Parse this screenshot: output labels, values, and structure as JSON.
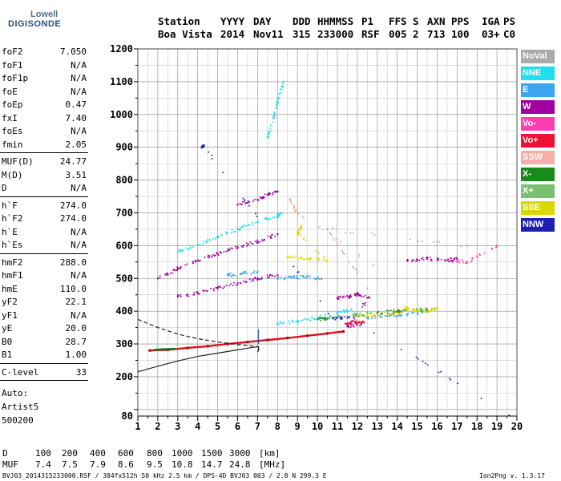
{
  "logo": {
    "line1": "Lowell",
    "line2": "DIGISONDE"
  },
  "header": {
    "labels": [
      "Station",
      "YYYY",
      "DAY",
      "DDD",
      "HHMMSS",
      "P1",
      "FFS",
      "S",
      "AXN",
      "PPS",
      "IGA",
      "PS"
    ],
    "values": [
      "Boa Vista",
      "2014",
      "Nov11",
      "315",
      "233000",
      "RSF",
      "005",
      "2",
      "713",
      "100",
      "03+",
      "C0"
    ]
  },
  "params": {
    "group1": [
      {
        "k": "foF2",
        "v": "7.050"
      },
      {
        "k": "foF1",
        "v": "N/A"
      },
      {
        "k": "foF1p",
        "v": "N/A"
      },
      {
        "k": "foE",
        "v": "N/A"
      },
      {
        "k": "foEp",
        "v": "0.47"
      },
      {
        "k": "fxI",
        "v": "7.40"
      },
      {
        "k": "foEs",
        "v": "N/A"
      },
      {
        "k": "fmin",
        "v": "2.05"
      }
    ],
    "group2": [
      {
        "k": "MUF(D)",
        "v": "24.77"
      },
      {
        "k": "M(D)",
        "v": "3.51"
      },
      {
        "k": "D",
        "v": "N/A"
      }
    ],
    "group3": [
      {
        "k": "h`F",
        "v": "274.0"
      },
      {
        "k": "h`F2",
        "v": "274.0"
      },
      {
        "k": "h`E",
        "v": "N/A"
      },
      {
        "k": "h`Es",
        "v": "N/A"
      }
    ],
    "group4": [
      {
        "k": "hmF2",
        "v": "288.0"
      },
      {
        "k": "hmF1",
        "v": "N/A"
      },
      {
        "k": "hmE",
        "v": "110.0"
      },
      {
        "k": "yF2",
        "v": "22.1"
      },
      {
        "k": "yF1",
        "v": "N/A"
      },
      {
        "k": "yE",
        "v": "20.0"
      },
      {
        "k": "B0",
        "v": "28.7"
      },
      {
        "k": "B1",
        "v": "1.00"
      }
    ],
    "group5": [
      {
        "k": "C-level",
        "v": "33"
      }
    ],
    "auto": [
      "Auto:",
      "Artist5",
      "500200"
    ]
  },
  "legend": [
    {
      "label": "NoVal",
      "color": "#aaaaaa"
    },
    {
      "label": "NNE",
      "color": "#22ddee"
    },
    {
      "label": "E",
      "color": "#3aa6f0"
    },
    {
      "label": "W",
      "color": "#a000a0"
    },
    {
      "label": "Vo-",
      "color": "#ff3fb0"
    },
    {
      "label": "Vo+",
      "color": "#ee1133"
    },
    {
      "label": "SSW",
      "color": "#f4b0a8"
    },
    {
      "label": "X-",
      "color": "#1a8a1a"
    },
    {
      "label": "X+",
      "color": "#7ac070"
    },
    {
      "label": "SSE",
      "color": "#d9d900"
    },
    {
      "label": "NNW",
      "color": "#2020b0"
    }
  ],
  "footer": {
    "d_label": "D",
    "d_values": [
      "100",
      "200",
      "400",
      "600",
      "800",
      "1000",
      "1500",
      "3000",
      "[km]"
    ],
    "muf_label": "MUF",
    "muf_values": [
      "7.4",
      "7.5",
      "7.9",
      "8.6",
      "9.5",
      "10.8",
      "14.7",
      "24.8",
      "[MHz]"
    ],
    "file_line": "BVJ03_2014315233000.RSF / 384fx512h 50 kHz 2.5 km / DPS-4D BVJ03 003 / 2.8 N 299.3 E",
    "version": "Ion2Png v. 1.3.17"
  },
  "chart_data": {
    "type": "scatter",
    "title": "",
    "xlabel": "",
    "ylabel": "",
    "xlim": [
      1,
      20
    ],
    "ylim": [
      80,
      1200
    ],
    "x_ticks": [
      "1",
      "2",
      "3",
      "4",
      "5",
      "6",
      "7",
      "8",
      "9",
      "10",
      "11",
      "12",
      "13",
      "14",
      "15",
      "16",
      "17",
      "18",
      "19",
      "20"
    ],
    "y_ticks": [
      "80",
      "200",
      "300",
      "400",
      "500",
      "600",
      "700",
      "800",
      "900",
      "1000",
      "1100",
      "1200"
    ],
    "y_tick_values": [
      80,
      200,
      300,
      400,
      500,
      600,
      700,
      800,
      900,
      1000,
      1100,
      1200
    ],
    "grid": true,
    "legend_position": "right",
    "profile_solid": [
      [
        1.0,
        215
      ],
      [
        2.0,
        232
      ],
      [
        3.0,
        248
      ],
      [
        4.0,
        262
      ],
      [
        5.0,
        272
      ],
      [
        6.0,
        282
      ],
      [
        6.6,
        288
      ],
      [
        7.05,
        292
      ],
      [
        7.05,
        280
      ],
      [
        7.0,
        275
      ]
    ],
    "profile_dashed": [
      [
        1.0,
        375
      ],
      [
        2.0,
        350
      ],
      [
        3.0,
        330
      ],
      [
        4.0,
        316
      ],
      [
        5.0,
        306
      ],
      [
        6.0,
        298
      ],
      [
        7.0,
        292
      ]
    ],
    "trace_o_red": [
      [
        1.6,
        280
      ],
      [
        2.5,
        282
      ],
      [
        3.5,
        288
      ],
      [
        4.5,
        293
      ],
      [
        5.5,
        300
      ],
      [
        6.5,
        306
      ],
      [
        7.5,
        312
      ],
      [
        8.5,
        318
      ],
      [
        9.5,
        325
      ],
      [
        10.5,
        332
      ],
      [
        11.3,
        338
      ]
    ],
    "trace_o_green_start": [
      [
        1.8,
        282
      ],
      [
        2.3,
        284
      ],
      [
        2.9,
        285
      ]
    ],
    "clusters": [
      {
        "dir": "NNE",
        "points": [
          [
            3.0,
            580
          ],
          [
            4.0,
            603
          ],
          [
            5.0,
            626
          ],
          [
            6.0,
            650
          ],
          [
            7.0,
            672
          ],
          [
            8.0,
            690
          ],
          [
            8.2,
            700
          ]
        ]
      },
      {
        "dir": "NNE",
        "points": [
          [
            8.0,
            362
          ],
          [
            9.0,
            370
          ],
          [
            10.0,
            380
          ],
          [
            11.0,
            395
          ],
          [
            11.7,
            405
          ]
        ]
      },
      {
        "dir": "NNE",
        "points": [
          [
            7.5,
            930
          ],
          [
            7.8,
            990
          ],
          [
            8.0,
            1040
          ],
          [
            8.3,
            1100
          ]
        ]
      },
      {
        "dir": "W",
        "points": [
          [
            2.0,
            500
          ],
          [
            3.0,
            530
          ],
          [
            4.0,
            555
          ],
          [
            5.0,
            575
          ],
          [
            6.0,
            595
          ],
          [
            7.0,
            612
          ],
          [
            8.0,
            635
          ]
        ]
      },
      {
        "dir": "W",
        "points": [
          [
            3.0,
            445
          ],
          [
            4.0,
            455
          ],
          [
            5.0,
            470
          ],
          [
            6.0,
            485
          ],
          [
            7.0,
            500
          ],
          [
            8.0,
            510
          ]
        ]
      },
      {
        "dir": "W",
        "points": [
          [
            11.0,
            440
          ],
          [
            11.6,
            445
          ],
          [
            12.0,
            452
          ],
          [
            12.6,
            442
          ],
          [
            11.5,
            355
          ],
          [
            12.2,
            360
          ]
        ]
      },
      {
        "dir": "W",
        "points": [
          [
            6.0,
            725
          ],
          [
            7.0,
            740
          ],
          [
            7.5,
            755
          ],
          [
            8.0,
            765
          ]
        ]
      },
      {
        "dir": "W",
        "points": [
          [
            14.5,
            555
          ],
          [
            15.5,
            560
          ],
          [
            16.5,
            555
          ],
          [
            17.0,
            560
          ]
        ]
      },
      {
        "dir": "E",
        "points": [
          [
            8.0,
            500
          ],
          [
            8.7,
            503
          ],
          [
            9.3,
            505
          ],
          [
            10.2,
            498
          ]
        ]
      },
      {
        "dir": "E",
        "points": [
          [
            12.5,
            380
          ],
          [
            13.5,
            385
          ],
          [
            14.5,
            390
          ],
          [
            15.5,
            398
          ]
        ]
      },
      {
        "dir": "E",
        "points": [
          [
            5.5,
            510
          ],
          [
            6.2,
            515
          ],
          [
            7.0,
            520
          ]
        ]
      },
      {
        "dir": "SSE",
        "points": [
          [
            12.0,
            385
          ],
          [
            13.0,
            388
          ],
          [
            14.0,
            395
          ],
          [
            14.5,
            410
          ],
          [
            15.0,
            402
          ],
          [
            15.6,
            400
          ],
          [
            16.0,
            410
          ]
        ]
      },
      {
        "dir": "SSE",
        "points": [
          [
            8.5,
            565
          ],
          [
            9.5,
            560
          ],
          [
            10.5,
            555
          ],
          [
            9.0,
            640
          ],
          [
            9.2,
            660
          ]
        ]
      },
      {
        "dir": "X-",
        "points": [
          [
            10.0,
            375
          ],
          [
            10.5,
            378
          ],
          [
            13.0,
            395
          ],
          [
            14.0,
            400
          ],
          [
            15.5,
            405
          ]
        ]
      },
      {
        "dir": "X+",
        "points": [
          [
            11.8,
            390
          ],
          [
            12.5,
            395
          ]
        ]
      },
      {
        "dir": "NNW",
        "points": [
          [
            4.2,
            900
          ],
          [
            4.3,
            905
          ],
          [
            10.8,
            378
          ],
          [
            11.6,
            382
          ],
          [
            19.6,
            82
          ]
        ]
      },
      {
        "dir": "SSW",
        "points": [
          [
            8.6,
            740
          ],
          [
            8.9,
            705
          ],
          [
            12.8,
            540
          ]
        ]
      },
      {
        "dir": "Vo+",
        "points": [
          [
            11.4,
            362
          ],
          [
            11.9,
            365
          ],
          [
            12.3,
            368
          ]
        ]
      },
      {
        "dir": "Vo-",
        "points": [
          [
            16.5,
            555
          ],
          [
            17.5,
            550
          ],
          [
            19.0,
            600
          ]
        ]
      },
      {
        "dir": "NoVal",
        "points": [
          [
            17.5,
            600
          ],
          [
            10.5,
            650
          ],
          [
            12.5,
            470
          ]
        ]
      }
    ]
  }
}
